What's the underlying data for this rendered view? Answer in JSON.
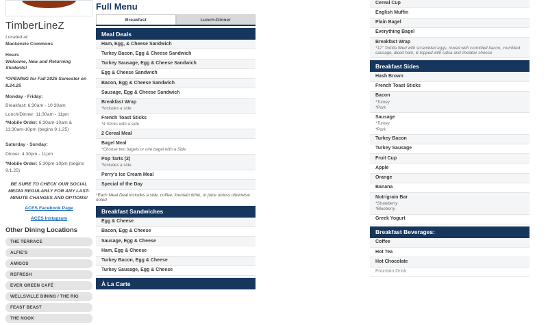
{
  "accent_colors": {
    "navy_header": "#17365d",
    "logo_red": "#8d3414",
    "link_blue": "#1f6cb8",
    "row_stripe": "#f4f5f6",
    "pill_gray": "#e4e4e4"
  },
  "sidebar": {
    "title": "TimberLineZ",
    "located_label": "Located at:",
    "location": "Mackenzie Commons",
    "hours_label": "Hours",
    "welcome": "Welcome, New and Returning Students!",
    "opening_note": "*OPENING for Fall 2025 Semester on 8.24.25",
    "weekday_label": "Monday - Friday:",
    "weekday_breakfast": "Breakfast:  6:30am - 10:30am",
    "weekday_lunch": "Lunch/Dinner:  11:30am - 11pm",
    "weekday_mobile_label": "*Mobile Order:",
    "weekday_mobile": " 6:30am-10am & 11:30am-10pm (begins 9.1.25)",
    "weekend_label": "Saturday - Sunday:",
    "weekend_dinner": "Dinner:  4:30pm - 11pm",
    "weekend_mobile_label": "*Mobile Order:",
    "weekend_mobile": " 5:30pm-10pm (begins 9.1.25)",
    "social_note": "BE SURE TO CHECK OUR SOCIAL MEDIA REGULARLY FOR ANY LAST-MINUTE CHANGES AND OPTIONS!",
    "links": [
      {
        "label": "ACES Facebook Page"
      },
      {
        "label": "ACES Instagram"
      }
    ],
    "other_locations_label": "Other Dining Locations",
    "locations": [
      "THE TERRACE",
      "ALFIE'S",
      "AMIGOS",
      "REFRESH",
      "EVER GREEN CAFÉ",
      "WELLSVILLE DINING / THE RIG",
      "FEAST BEAST",
      "THE NOOK"
    ]
  },
  "menu": {
    "title": "Full Menu",
    "tabs": [
      {
        "label": "Breakfast",
        "active": true
      },
      {
        "label": "Lunch-Dinner",
        "active": false
      }
    ],
    "left_sections": [
      {
        "header": "Meal Deals",
        "items": [
          {
            "name": "Ham, Egg, & Cheese Sandwich"
          },
          {
            "name": "Turkey Bacon, Egg & Cheese Sandwich"
          },
          {
            "name": "Turkey Sausage, Egg & Cheese Sandwich"
          },
          {
            "name": "Egg & Cheese Sandwich"
          },
          {
            "name": "Bacon, Egg & Cheese Sandwich"
          },
          {
            "name": "Sausage, Egg & Cheese Sandwich"
          },
          {
            "name": "Breakfast Wrap",
            "notes": [
              "*Includes a side"
            ]
          },
          {
            "name": "French Toast Sticks",
            "notes": [
              "*4 Sticks with a side"
            ]
          },
          {
            "name": "2 Cereal Meal"
          },
          {
            "name": "Bagel Meal",
            "notes": [
              "*Choose two bagels or one bagel with a Side"
            ]
          },
          {
            "name": "Pop Tarts (2)",
            "notes": [
              "*Includes a side"
            ]
          },
          {
            "name": "Perry's Ice Cream Meal"
          },
          {
            "name": "Special of the Day"
          }
        ],
        "footnote": "*Each Meal Deal includes a side, coffee, fountain drink, or juice unless otherwise noted"
      },
      {
        "header": "Breakfast Sandwiches",
        "items": [
          {
            "name": "Egg & Cheese"
          },
          {
            "name": "Bacon, Egg & Cheese"
          },
          {
            "name": "Sausage, Egg & Cheese"
          },
          {
            "name": "Ham, Egg & Cheese"
          },
          {
            "name": "Turkey Bacon, Egg & Cheese"
          },
          {
            "name": "Turkey Sausage, Egg & Cheese"
          }
        ]
      },
      {
        "header": "À La Carte",
        "items": []
      }
    ],
    "right_sections": [
      {
        "header": null,
        "items": [
          {
            "name": "Cereal Cup"
          },
          {
            "name": "English Muffin"
          },
          {
            "name": "Plain Bagel"
          },
          {
            "name": "Everything Bagel"
          },
          {
            "name": "Breakfast Wrap",
            "notes": [
              "*12\" Tortilla filled with scrambled eggs, mixed with crumbled bacon, crumbled sausage, diced ham, & topped with salsa and cheddar cheese"
            ]
          }
        ]
      },
      {
        "header": "Breakfast Sides",
        "items": [
          {
            "name": "Hash Brown"
          },
          {
            "name": "French Toast Sticks"
          },
          {
            "name": "Bacon",
            "notes": [
              "*Turkey",
              "*Pork"
            ]
          },
          {
            "name": "Sausage",
            "notes": [
              "*Turkey",
              "*Pork"
            ]
          },
          {
            "name": "Turkey Bacon"
          },
          {
            "name": "Turkey Sausage"
          },
          {
            "name": "Fruit Cup"
          },
          {
            "name": "Apple"
          },
          {
            "name": "Orange"
          },
          {
            "name": "Banana"
          },
          {
            "name": "Nutrigrain Bar",
            "notes": [
              "*Strawberry",
              "*Blueberry"
            ]
          },
          {
            "name": "Greek Yogurt"
          }
        ]
      },
      {
        "header": "Breakfast Beverages:",
        "items": [
          {
            "name": "Coffee"
          },
          {
            "name": "Hot Tea"
          },
          {
            "name": "Hot Chocolate"
          },
          {
            "name": "Fountain Drink",
            "muted": true
          }
        ]
      }
    ]
  }
}
